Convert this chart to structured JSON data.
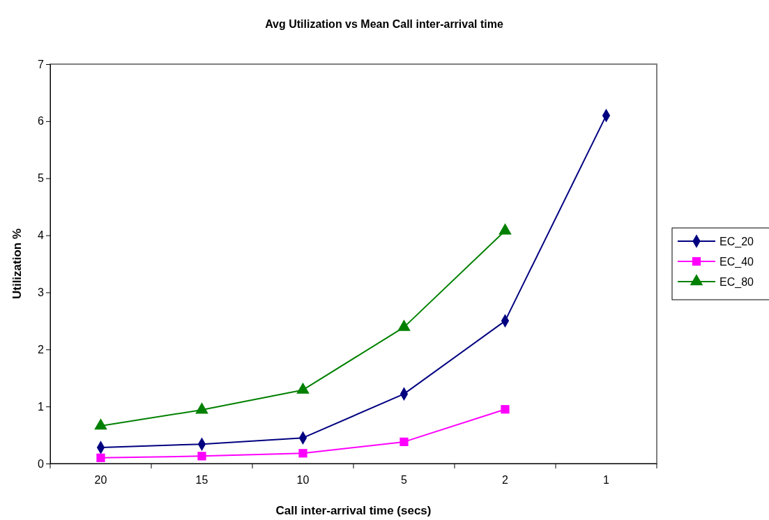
{
  "chart_data": {
    "type": "line",
    "title": "Avg Utilization vs Mean Call inter-arrival time",
    "xlabel": "Call inter-arrival time (secs)",
    "ylabel": "Utilization %",
    "categories": [
      "20",
      "15",
      "10",
      "5",
      "2",
      "1"
    ],
    "series": [
      {
        "name": "EC_20",
        "color": "#000080",
        "marker": "diamond",
        "values": [
          0.28,
          0.34,
          0.45,
          1.22,
          2.5,
          6.1
        ]
      },
      {
        "name": "EC_40",
        "color": "#ff00ff",
        "marker": "square",
        "values": [
          0.1,
          0.13,
          0.18,
          0.38,
          0.95,
          null
        ]
      },
      {
        "name": "EC_80",
        "color": "#008000",
        "marker": "triangle",
        "values": [
          0.66,
          0.94,
          1.29,
          2.39,
          4.08,
          null
        ]
      }
    ],
    "ylim": [
      0,
      7
    ],
    "yticks": [
      0,
      1,
      2,
      3,
      4,
      5,
      6,
      7
    ],
    "grid": false,
    "legend": "right",
    "line_style": "solid"
  }
}
